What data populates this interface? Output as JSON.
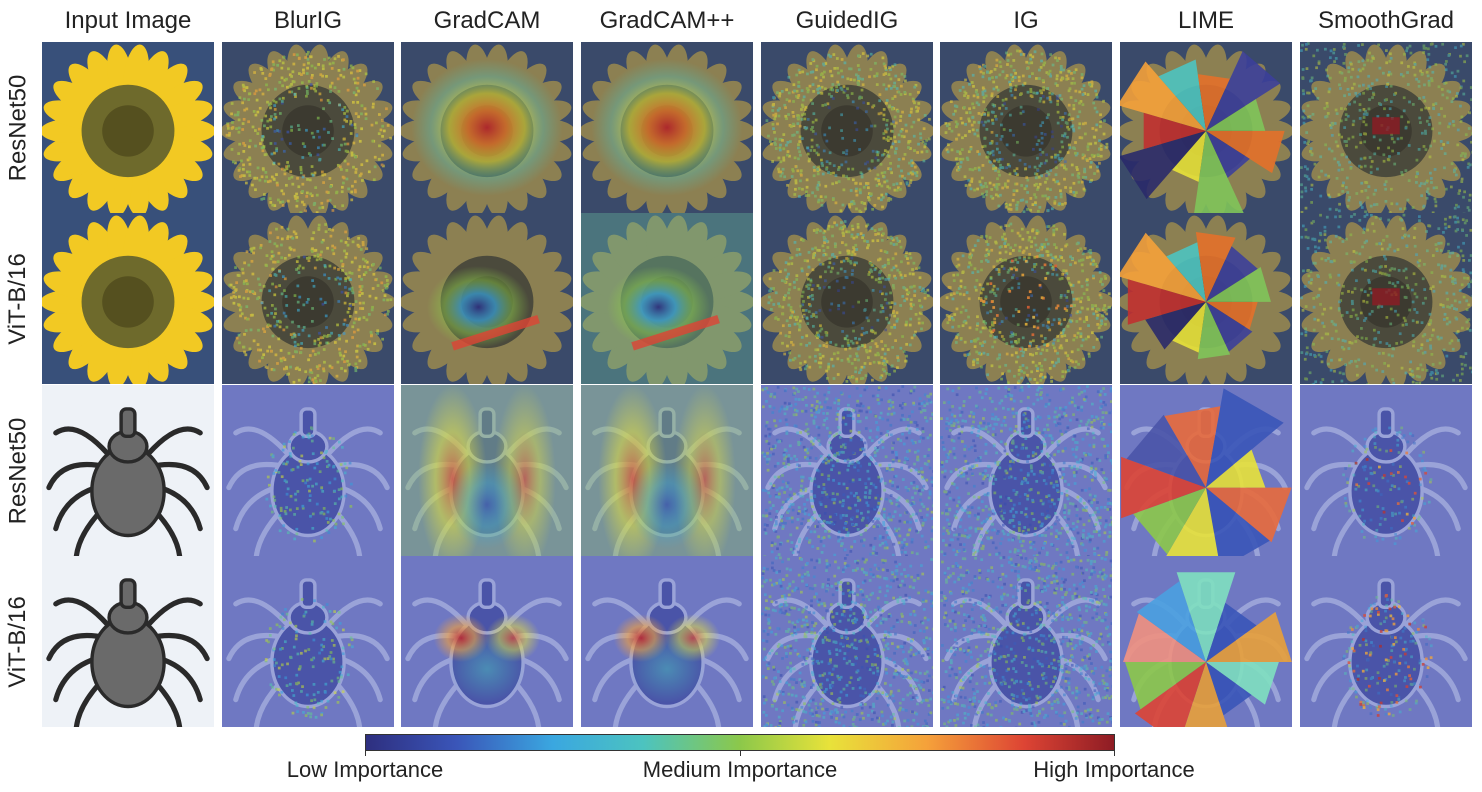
{
  "columns": [
    "Input Image",
    "BlurIG",
    "GradCAM",
    "GradCAM++",
    "GuidedIG",
    "IG",
    "LIME",
    "SmoothGrad"
  ],
  "rows": [
    "ResNet50",
    "ViT-B/16",
    "ResNet50",
    "ViT-B/16"
  ],
  "colorbar": {
    "low_label": "Low Importance",
    "mid_label": "Medium Importance",
    "high_label": "High Importance",
    "stops": [
      "#2e2f7f",
      "#3a55b8",
      "#3aa7e0",
      "#4cc3c0",
      "#8cc84a",
      "#e8e23a",
      "#f5a13a",
      "#dd4434",
      "#8e1c24"
    ]
  }
}
